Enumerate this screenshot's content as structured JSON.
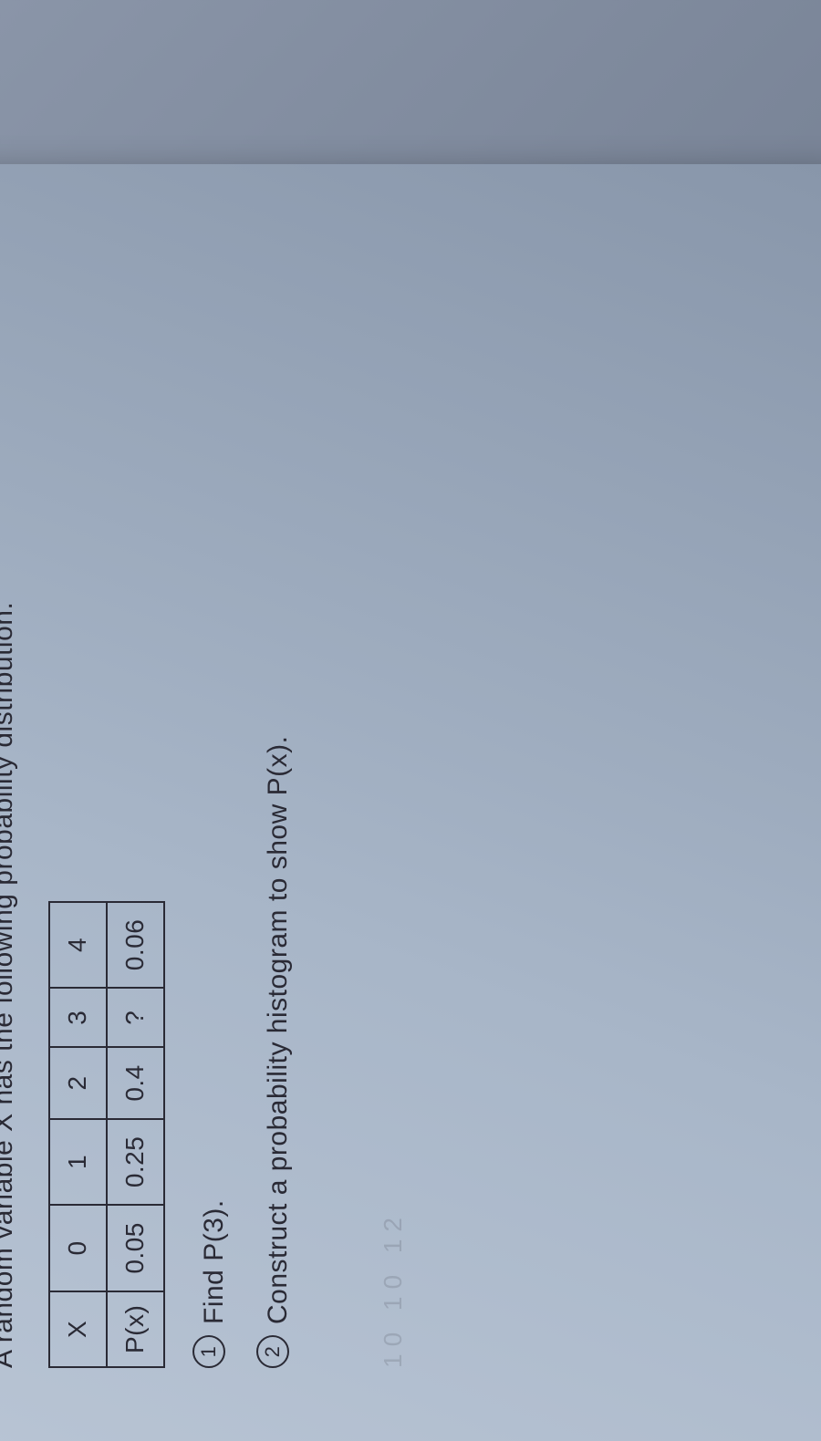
{
  "intro": "A random variable X has the following probability distribution.",
  "table": {
    "row1_label": "X",
    "row2_label": "P(x)",
    "x_values": [
      "0",
      "1",
      "2",
      "3",
      "4"
    ],
    "p_values": [
      "0.05",
      "0.25",
      "0.4",
      "?",
      "0.06"
    ],
    "border_color": "#2a2a35",
    "cell_fontsize": 28
  },
  "questions": [
    {
      "marker": "1",
      "text": "Find P(3)."
    },
    {
      "marker": "2",
      "text": "Construct a probability histogram to show P(x)."
    }
  ],
  "faded_marks": "10   10   12",
  "styling": {
    "paper_bg_from": "#b8c4d4",
    "paper_bg_to": "#8896aa",
    "ink_color": "#2a2a35",
    "fontsize": 30,
    "rotation_deg": -90
  }
}
